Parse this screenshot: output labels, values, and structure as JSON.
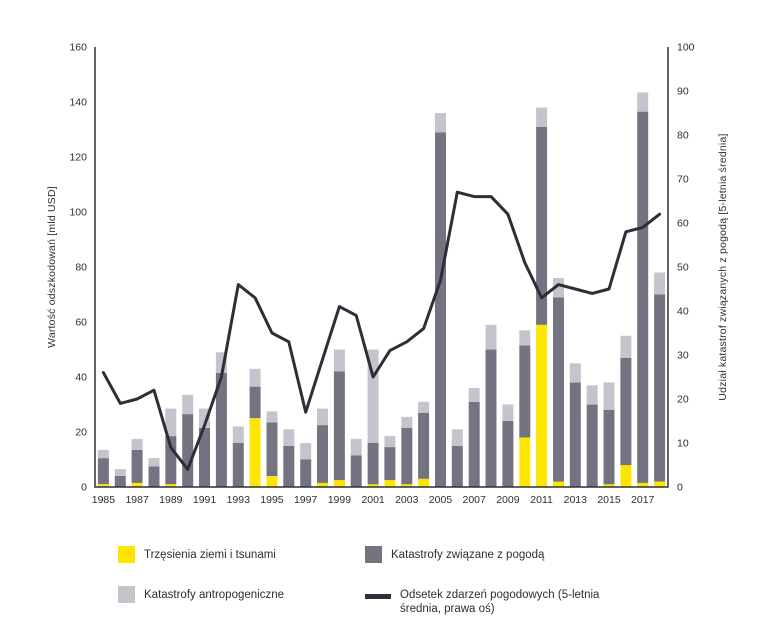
{
  "colors": {
    "earthquake": "#FFE600",
    "weather": "#747480",
    "anthropogenic": "#C4C4CD",
    "line": "#2E2E38",
    "axis": "#2E2E38",
    "text": "#2E2E38"
  },
  "chart_data": {
    "type": "bar",
    "subtype": "stacked-bars-with-line",
    "title": "",
    "x": [
      1985,
      1986,
      1987,
      1988,
      1989,
      1990,
      1991,
      1992,
      1993,
      1994,
      1995,
      1996,
      1997,
      1998,
      1999,
      2000,
      2001,
      2002,
      2003,
      2004,
      2005,
      2006,
      2007,
      2008,
      2009,
      2010,
      2011,
      2012,
      2013,
      2014,
      2015,
      2016,
      2017,
      2018
    ],
    "x_tick_labels": [
      "1985",
      "1987",
      "1989",
      "1991",
      "1993",
      "1995",
      "1997",
      "1999",
      "2001",
      "2003",
      "2005",
      "2007",
      "2009",
      "2011",
      "2013",
      "2015",
      "2017"
    ],
    "series": [
      {
        "name": "Trzęsienia ziemi i tsunami",
        "color": "#FFE600",
        "values": [
          1,
          0,
          1.5,
          0,
          1,
          0,
          0,
          0,
          0,
          25,
          4,
          0,
          0,
          1.5,
          2.5,
          0,
          1,
          2.5,
          1,
          3,
          0,
          0,
          0,
          0,
          0,
          18,
          59,
          2,
          0,
          0,
          1,
          8,
          1.5,
          2
        ]
      },
      {
        "name": "Katastrofy związane z pogodą",
        "color": "#747480",
        "values": [
          9.5,
          4,
          12,
          7.5,
          17.5,
          26.5,
          21.5,
          41.5,
          16,
          11.5,
          19.5,
          15,
          10,
          21,
          39.5,
          11.5,
          15,
          12,
          20.5,
          24,
          129,
          15,
          31,
          50,
          24,
          33.5,
          72,
          67,
          38,
          30,
          27,
          39,
          135,
          68
        ]
      },
      {
        "name": "Katastrofy antropogeniczne",
        "color": "#C4C4CD",
        "values": [
          3,
          2.5,
          4,
          3,
          10,
          7,
          7,
          7.5,
          6,
          6.5,
          4,
          6,
          6,
          6,
          8,
          6,
          34,
          4,
          4,
          4,
          7,
          6,
          5,
          9,
          6,
          5.5,
          7,
          7,
          7,
          7,
          10,
          8,
          7,
          8
        ]
      }
    ],
    "line_series": {
      "name": "Odsetek zdarzeń pogodowych (5-letnia średnia, prawa oś)",
      "color": "#2E2E38",
      "axis": "right",
      "values": [
        26,
        19,
        20,
        22,
        9,
        4,
        14,
        25,
        46,
        43,
        35,
        33,
        17,
        29,
        41,
        39,
        25,
        31,
        33,
        36,
        47,
        67,
        66,
        66,
        62,
        51,
        43,
        46,
        45,
        44,
        45,
        58,
        59,
        62
      ]
    },
    "left_axis": {
      "label": "Wartość odszkodowań [mld USD]",
      "min": 0,
      "max": 160,
      "step": 20,
      "ticks": [
        "0",
        "20",
        "40",
        "60",
        "80",
        "100",
        "120",
        "140",
        "160"
      ]
    },
    "right_axis": {
      "label": "Udział katastrof związanych z pogodą [5-letnia średnia]",
      "min": 0,
      "max": 100,
      "step": 10,
      "ticks": [
        "0",
        "10",
        "20",
        "30",
        "40",
        "50",
        "60",
        "70",
        "80",
        "90",
        "100"
      ]
    },
    "grid": false,
    "legend_position": "bottom"
  },
  "legend": {
    "items": [
      {
        "label": "Trzęsienia ziemi i tsunami",
        "swatch": "square",
        "color": "#FFE600"
      },
      {
        "label": "Katastrofy związane z pogodą",
        "swatch": "square",
        "color": "#747480"
      },
      {
        "label": "Katastrofy antropogeniczne",
        "swatch": "square",
        "color": "#C4C4CD"
      },
      {
        "label": "Odsetek zdarzeń pogodowych (5-letnia średnia, prawa oś)",
        "swatch": "line",
        "color": "#2E2E38"
      }
    ]
  }
}
